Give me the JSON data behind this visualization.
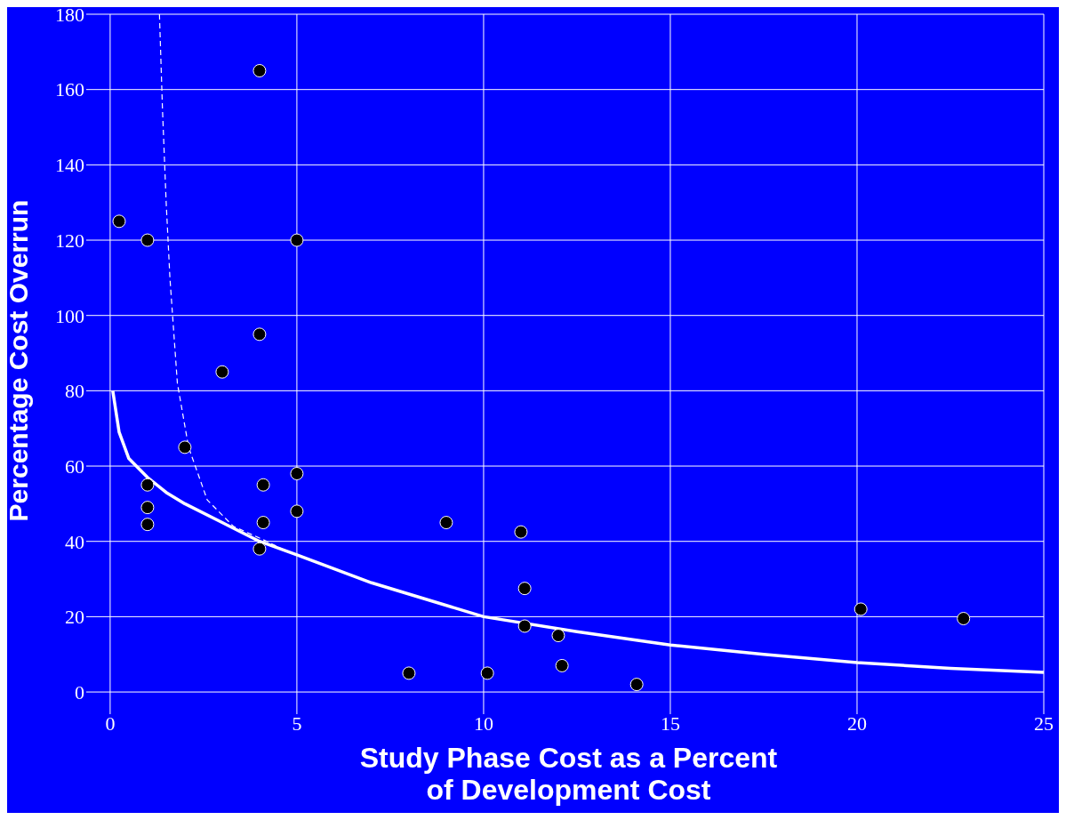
{
  "chart_data": {
    "type": "scatter",
    "xlabel": "Study Phase Cost as a Percent\nof Development Cost",
    "ylabel": "Percentage Cost Overrun",
    "xlim": [
      -0.45,
      25
    ],
    "ylim": [
      -4,
      180
    ],
    "xticks": [
      0,
      5,
      10,
      15,
      20,
      25
    ],
    "yticks": [
      0,
      20,
      40,
      60,
      80,
      100,
      120,
      140,
      160,
      180
    ],
    "grid": true,
    "series": [
      {
        "color": "#000000",
        "marker": "circle",
        "x": [
          0.24,
          1,
          4,
          5,
          4,
          3,
          2,
          1,
          1,
          1,
          4.1,
          4.1,
          4,
          5,
          5,
          9,
          11,
          11.1,
          11.1,
          12,
          12.1,
          8,
          10.1,
          14.1,
          20.1,
          22.85
        ],
        "values": [
          125,
          120,
          165,
          120,
          95,
          85,
          65,
          55,
          49,
          44.5,
          55,
          45,
          38,
          58,
          48,
          45,
          42.5,
          27.5,
          17.5,
          15,
          7,
          5,
          5,
          2,
          22,
          19.5
        ]
      },
      {
        "type": "line",
        "color": "#ffffff",
        "line_style": "solid",
        "marker": "none",
        "x": [
          0.07,
          0.24,
          0.5,
          1,
          1.5,
          2,
          3,
          4,
          5,
          7,
          10,
          12.5,
          15,
          17.5,
          20,
          22.5,
          25
        ],
        "values": [
          80,
          69,
          62,
          57,
          53,
          50,
          45,
          40,
          36.4,
          29,
          20,
          16,
          12.5,
          10,
          7.8,
          6.3,
          5.2
        ]
      },
      {
        "type": "line",
        "color": "#ffffff",
        "line_style": "dashed",
        "marker": "none",
        "x": [
          1.32,
          1.4,
          1.5,
          1.6,
          1.8,
          2.1,
          2.6,
          3.3,
          4.2,
          4.6
        ],
        "values": [
          180,
          155,
          130,
          110,
          82,
          65,
          51,
          44,
          40,
          38
        ]
      }
    ]
  }
}
